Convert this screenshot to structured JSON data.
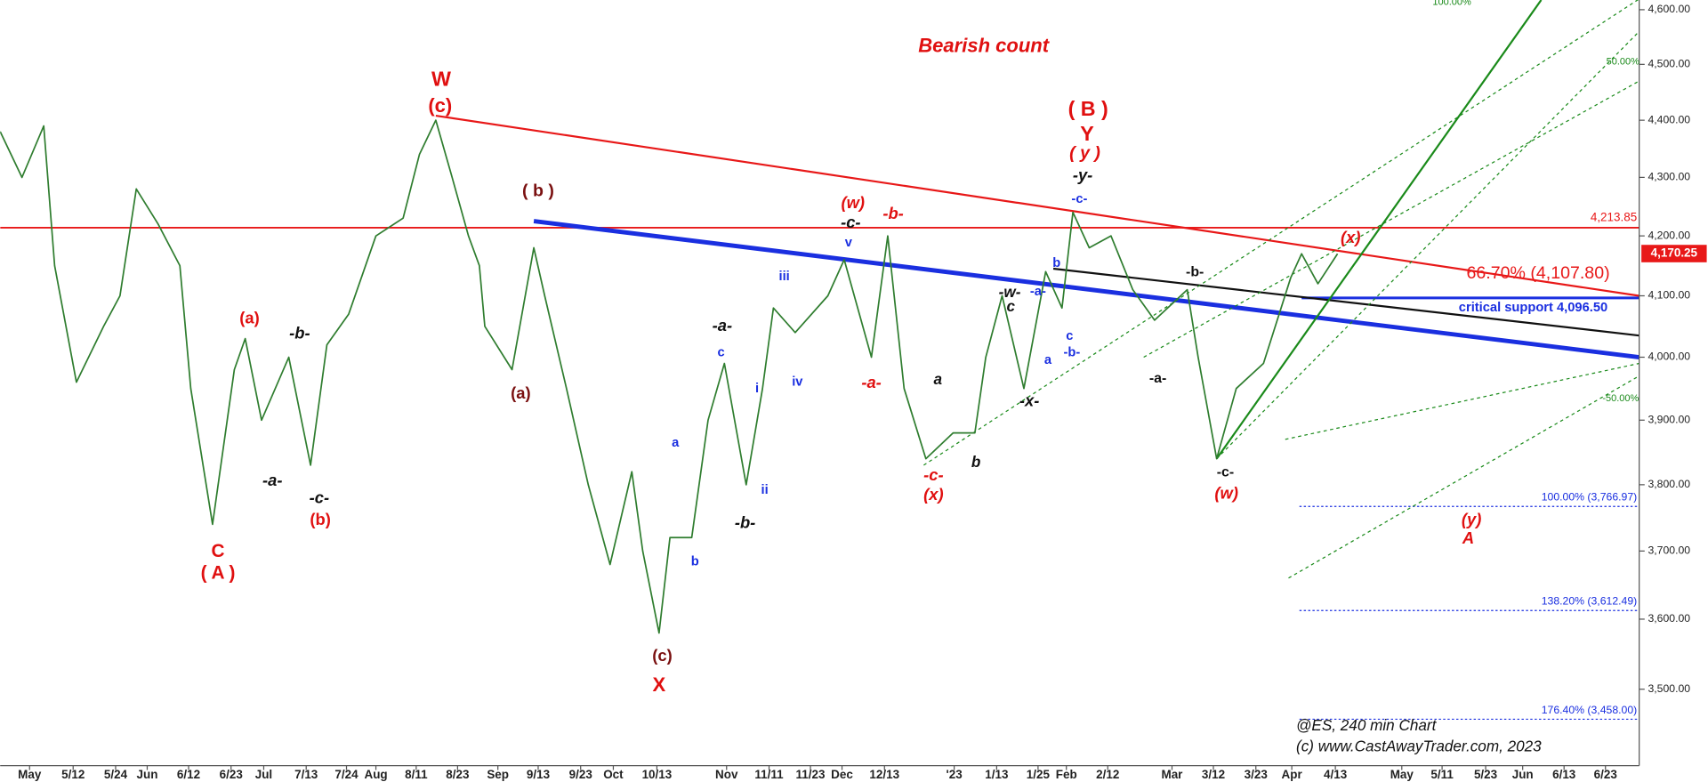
{
  "chart_data": {
    "type": "line",
    "title": "Bearish count",
    "title_color": "#e01010",
    "log_scale": true,
    "xlim": [
      0,
      301
    ],
    "xticks": [
      {
        "value": 5.4,
        "label": "May"
      },
      {
        "value": 13.4,
        "label": "5/12"
      },
      {
        "value": 21.2,
        "label": "5/24"
      },
      {
        "value": 27,
        "label": "Jun"
      },
      {
        "value": 34.6,
        "label": "6/12"
      },
      {
        "value": 42.4,
        "label": "6/23"
      },
      {
        "value": 48.4,
        "label": "Jul"
      },
      {
        "value": 56.2,
        "label": "7/13"
      },
      {
        "value": 63.6,
        "label": "7/24"
      },
      {
        "value": 69,
        "label": "Aug"
      },
      {
        "value": 76.4,
        "label": "8/11"
      },
      {
        "value": 84,
        "label": "8/23"
      },
      {
        "value": 91.4,
        "label": "Sep"
      },
      {
        "value": 98.8,
        "label": "9/13"
      },
      {
        "value": 106.6,
        "label": "9/23"
      },
      {
        "value": 112.6,
        "label": "Oct"
      },
      {
        "value": 120.6,
        "label": "10/13"
      },
      {
        "value": 133.4,
        "label": "Nov"
      },
      {
        "value": 141.2,
        "label": "11/11"
      },
      {
        "value": 148.8,
        "label": "11/23"
      },
      {
        "value": 154.6,
        "label": "Dec"
      },
      {
        "value": 162.4,
        "label": "12/13"
      },
      {
        "value": 175.2,
        "label": "'23"
      },
      {
        "value": 183,
        "label": "1/13"
      },
      {
        "value": 190.6,
        "label": "1/25"
      },
      {
        "value": 195.8,
        "label": "Feb"
      },
      {
        "value": 203.4,
        "label": "2/12"
      },
      {
        "value": 215.2,
        "label": "Mar"
      },
      {
        "value": 222.8,
        "label": "3/12"
      },
      {
        "value": 230.6,
        "label": "3/23"
      },
      {
        "value": 237.2,
        "label": "Apr"
      },
      {
        "value": 245.2,
        "label": "4/13"
      },
      {
        "value": 257.4,
        "label": "May"
      },
      {
        "value": 264.8,
        "label": "5/11"
      },
      {
        "value": 272.8,
        "label": "5/23"
      },
      {
        "value": 279.6,
        "label": "Jun"
      },
      {
        "value": 287.2,
        "label": "6/13"
      },
      {
        "value": 294.8,
        "label": "6/23"
      }
    ],
    "ylim": [
      3394,
      4618
    ],
    "yticks": [
      {
        "value": 4600,
        "label": "4,600.00"
      },
      {
        "value": 4500,
        "label": "4,500.00"
      },
      {
        "value": 4400,
        "label": "4,400.00"
      },
      {
        "value": 4300,
        "label": "4,300.00"
      },
      {
        "value": 4200,
        "label": "4,200.00"
      },
      {
        "value": 4100,
        "label": "4,100.00"
      },
      {
        "value": 4000,
        "label": "4,000.00"
      },
      {
        "value": 3900,
        "label": "3,900.00"
      },
      {
        "value": 3800,
        "label": "3,800.00"
      },
      {
        "value": 3700,
        "label": "3,700.00"
      },
      {
        "value": 3600,
        "label": "3,600.00"
      },
      {
        "value": 3500,
        "label": "3,500.00"
      }
    ],
    "series": [
      {
        "color": "#2f7d2f",
        "x": [
          0,
          4,
          8,
          10,
          14,
          19,
          22,
          25,
          29,
          33,
          35,
          39,
          43,
          45,
          48,
          53,
          57,
          60,
          64,
          69,
          74,
          77,
          80,
          83,
          86,
          88,
          89,
          94,
          98,
          100,
          104,
          108,
          112,
          116,
          118,
          121,
          123,
          127,
          130,
          133,
          137,
          140,
          142,
          146,
          152,
          155,
          160,
          163,
          166,
          170,
          175,
          179,
          181,
          184,
          188,
          192,
          195,
          197,
          200,
          204,
          208,
          212,
          218,
          220,
          223.4,
          227,
          232,
          237,
          239,
          242,
          245.6
        ],
        "values": [
          4380,
          4300,
          4390,
          4150,
          3960,
          4050,
          4100,
          4280,
          4220,
          4150,
          3950,
          3740,
          3980,
          4030,
          3900,
          4000,
          3830,
          4020,
          4070,
          4200,
          4230,
          4340,
          4400,
          4300,
          4200,
          4150,
          4050,
          3980,
          4180,
          4100,
          3950,
          3800,
          3680,
          3820,
          3700,
          3580,
          3720,
          3720,
          3900,
          3990,
          3800,
          3950,
          4080,
          4040,
          4100,
          4160,
          4000,
          4200,
          3950,
          3840,
          3880,
          3880,
          4000,
          4100,
          3950,
          4140,
          4080,
          4240,
          4180,
          4200,
          4110,
          4060,
          4110,
          4000,
          3840,
          3950,
          3990,
          4130,
          4170,
          4120,
          4170
        ]
      }
    ],
    "trendlines": [
      {
        "color": "#e81818",
        "style": "solid",
        "x": [
          80,
          301
        ],
        "values": [
          4408,
          4100
        ]
      },
      {
        "color": "#1a2fe0",
        "style": "thick",
        "x": [
          98,
          301
        ],
        "values": [
          4225,
          4000
        ]
      },
      {
        "color": "#111111",
        "style": "solid",
        "x": [
          193.4,
          301
        ],
        "values": [
          4145,
          4035
        ]
      },
      {
        "color": "#1a8a1a",
        "style": "solid",
        "x": [
          223.4,
          283
        ],
        "values": [
          3840,
          4618
        ]
      },
      {
        "color": "#1a8a1a",
        "style": "dotted",
        "x": [
          169.6,
          301
        ],
        "values": [
          3830,
          4620
        ]
      },
      {
        "color": "#1a8a1a",
        "style": "dotted",
        "x": [
          223.4,
          301
        ],
        "values": [
          3840,
          4560
        ]
      },
      {
        "color": "#1a8a1a",
        "style": "dotted",
        "x": [
          210,
          301
        ],
        "values": [
          4000,
          4470
        ]
      },
      {
        "color": "#1a8a1a",
        "style": "dotted",
        "x": [
          236,
          301
        ],
        "values": [
          3870,
          3990
        ]
      },
      {
        "color": "#1a8a1a",
        "style": "dotted",
        "x": [
          236.6,
          301
        ],
        "values": [
          3660,
          3970
        ]
      }
    ],
    "levels": [
      {
        "value": 4213.85,
        "label": "4,213.85",
        "color": "#e81818",
        "x0": 0
      },
      {
        "value": 4170.25,
        "label": "4,170.25",
        "color": "#e81818",
        "x0": 301
      },
      {
        "value": 4107.8,
        "label": "66.70% (4,107.80)",
        "color": "#e81818",
        "x0": 301
      },
      {
        "value": 4096.5,
        "label": "critical support 4,096.50",
        "color": "#1a2fe0",
        "x0": 239
      },
      {
        "value": 3766.97,
        "label": "100.00% (3,766.97)",
        "color": "#1a2fe0",
        "x0": 238.6
      },
      {
        "value": 3612.49,
        "label": "138.20% (3,612.49)",
        "color": "#1a2fe0",
        "x0": 238.6
      },
      {
        "value": 3458,
        "label": "176.40% (3,458.00)",
        "color": "#1a2fe0",
        "x0": 238.6
      }
    ],
    "annotations": [
      {
        "text": "W",
        "color": "#e01010"
      },
      {
        "text": "(c)",
        "color": "#e01010"
      },
      {
        "text": "C",
        "color": "#e01010"
      },
      {
        "text": "( A )",
        "color": "#e01010"
      },
      {
        "text": "(a)",
        "color": "#e01010"
      },
      {
        "text": "(b)",
        "color": "#e01010"
      },
      {
        "text": "-b-",
        "color": "#111111"
      },
      {
        "text": "-a-",
        "color": "#111111"
      },
      {
        "text": "-c-",
        "color": "#111111"
      },
      {
        "text": "(a)",
        "color": "#7a1010"
      },
      {
        "text": "( b )",
        "color": "#7a1010"
      },
      {
        "text": "(c)",
        "color": "#7a1010"
      },
      {
        "text": "X",
        "color": "#e01010"
      },
      {
        "text": "a",
        "color": "#1a2fe0"
      },
      {
        "text": "b",
        "color": "#1a2fe0"
      },
      {
        "text": "c",
        "color": "#1a2fe0"
      },
      {
        "text": "-a-",
        "color": "#111111"
      },
      {
        "text": "i",
        "color": "#1a2fe0"
      },
      {
        "text": "ii",
        "color": "#1a2fe0"
      },
      {
        "text": "-b-",
        "color": "#111111"
      },
      {
        "text": "iii",
        "color": "#1a2fe0"
      },
      {
        "text": "iv",
        "color": "#1a2fe0"
      },
      {
        "text": "v",
        "color": "#1a2fe0"
      },
      {
        "text": "-c-",
        "color": "#111111"
      },
      {
        "text": "(w)",
        "color": "#e01010"
      },
      {
        "text": "-b-",
        "color": "#e01010"
      },
      {
        "text": "-a-",
        "color": "#e01010"
      },
      {
        "text": "-c-",
        "color": "#e01010"
      },
      {
        "text": "(x)",
        "color": "#e01010"
      },
      {
        "text": "a",
        "color": "#111111"
      },
      {
        "text": "b",
        "color": "#111111"
      },
      {
        "text": "-w-",
        "color": "#111111"
      },
      {
        "text": "c",
        "color": "#111111"
      },
      {
        "text": "-x-",
        "color": "#111111"
      },
      {
        "text": "-a-",
        "color": "#1a2fe0"
      },
      {
        "text": "a",
        "color": "#1a2fe0"
      },
      {
        "text": "b",
        "color": "#1a2fe0"
      },
      {
        "text": "c",
        "color": "#1a2fe0"
      },
      {
        "text": "-b-",
        "color": "#1a2fe0"
      },
      {
        "text": "-c-",
        "color": "#1a2fe0"
      },
      {
        "text": "-y-",
        "color": "#111111"
      },
      {
        "text": "( y )",
        "color": "#e01010"
      },
      {
        "text": "Y",
        "color": "#e01010"
      },
      {
        "text": "( B )",
        "color": "#e01010"
      },
      {
        "text": "-b-",
        "color": "#111111"
      },
      {
        "text": "-a-",
        "color": "#111111"
      },
      {
        "text": "-c-",
        "color": "#111111"
      },
      {
        "text": "(w)",
        "color": "#e01010"
      },
      {
        "text": "(x)",
        "color": "#e01010"
      },
      {
        "text": "(y)",
        "color": "#e01010"
      },
      {
        "text": "A",
        "color": "#e01010"
      },
      {
        "text": "100.00%",
        "color": "#1a8a1a"
      },
      {
        "text": "50.00%",
        "color": "#1a8a1a"
      },
      {
        "text": "-50.00%",
        "color": "#1a8a1a"
      }
    ],
    "footer": [
      "@ES, 240 min Chart",
      "(c) www.CastAwayTrader.com, 2023"
    ]
  }
}
